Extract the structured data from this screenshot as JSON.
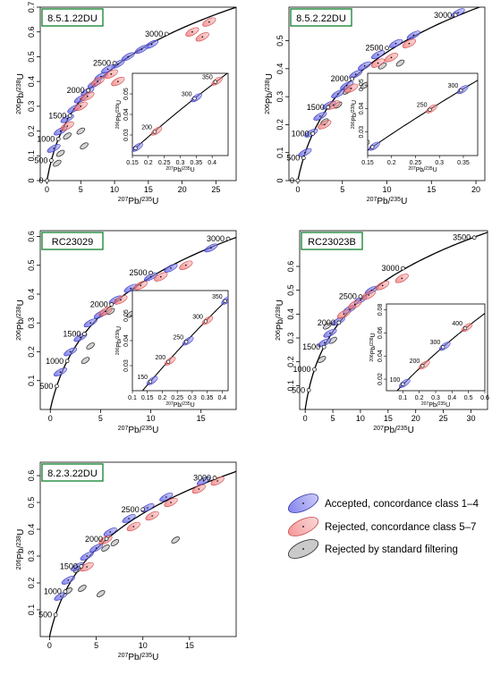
{
  "figure": {
    "legend": [
      {
        "label": "Accepted, concordance class 1–4",
        "color": "#6a6ae0"
      },
      {
        "label": "Rejected, concordance class 5–7",
        "color": "#f08080"
      },
      {
        "label": "Rejected by standard filtering",
        "color": "#a9a9a9"
      }
    ]
  },
  "chart_data": [
    {
      "type": "scatter",
      "sample": "8.5.1.22DU",
      "xlabel": "207Pb/235U",
      "ylabel": "206Pb/238U",
      "xlim": [
        -1,
        28
      ],
      "ylim": [
        0,
        0.7
      ],
      "xticks": [
        0,
        5,
        10,
        15,
        20,
        25
      ],
      "yticks": [
        0,
        0.1,
        0.2,
        0.3,
        0.4,
        0.5,
        0.6,
        0.7
      ],
      "concordia_labels": [
        {
          "age": "0",
          "x": 0.0,
          "y": 0.0
        },
        {
          "age": "500",
          "x": 0.64,
          "y": 0.081
        },
        {
          "age": "1000",
          "x": 1.68,
          "y": 0.168
        },
        {
          "age": "1500",
          "x": 3.4,
          "y": 0.262
        },
        {
          "age": "2000",
          "x": 6.1,
          "y": 0.364
        },
        {
          "age": "2500",
          "x": 10.0,
          "y": 0.474
        },
        {
          "age": "3000",
          "x": 17.7,
          "y": 0.592
        }
      ],
      "inset": {
        "xlim": [
          0.15,
          0.45
        ],
        "ylim": [
          0.02,
          0.06
        ],
        "xticks": [
          0.15,
          0.2,
          0.25,
          0.3,
          0.35,
          0.4
        ],
        "yticks": [
          0.03,
          0.04,
          0.05
        ],
        "ages": [
          {
            "age": "150",
            "x": 0.16,
            "y": 0.0236
          },
          {
            "age": "200",
            "x": 0.22,
            "y": 0.0315
          },
          {
            "age": "300",
            "x": 0.345,
            "y": 0.0477
          },
          {
            "age": "350",
            "x": 0.41,
            "y": 0.0558
          }
        ]
      },
      "accepted": [
        {
          "x": 15.5,
          "y": 0.55
        },
        {
          "x": 14.0,
          "y": 0.53
        },
        {
          "x": 12.0,
          "y": 0.5
        },
        {
          "x": 10.5,
          "y": 0.47
        },
        {
          "x": 9.0,
          "y": 0.45
        },
        {
          "x": 8.0,
          "y": 0.42
        },
        {
          "x": 7.0,
          "y": 0.39
        },
        {
          "x": 6.0,
          "y": 0.36
        },
        {
          "x": 5.0,
          "y": 0.33
        },
        {
          "x": 4.0,
          "y": 0.29
        },
        {
          "x": 3.0,
          "y": 0.25
        },
        {
          "x": 2.0,
          "y": 0.2
        },
        {
          "x": 1.0,
          "y": 0.13
        }
      ],
      "rejected_conc": [
        {
          "x": 24.0,
          "y": 0.64
        },
        {
          "x": 23.0,
          "y": 0.58
        },
        {
          "x": 21.5,
          "y": 0.6
        },
        {
          "x": 10.5,
          "y": 0.4
        },
        {
          "x": 9.5,
          "y": 0.43
        },
        {
          "x": 7.5,
          "y": 0.4
        },
        {
          "x": 6.0,
          "y": 0.34
        },
        {
          "x": 5.0,
          "y": 0.3
        },
        {
          "x": 3.0,
          "y": 0.22
        }
      ],
      "rejected_filter": [
        {
          "x": 5.5,
          "y": 0.14
        },
        {
          "x": 5.0,
          "y": 0.2
        },
        {
          "x": 3.0,
          "y": 0.18
        },
        {
          "x": 2.0,
          "y": 0.11
        },
        {
          "x": 1.5,
          "y": 0.07
        }
      ]
    },
    {
      "type": "scatter",
      "sample": "8.5.2.22DU",
      "xlabel": "207Pb/235U",
      "ylabel": "206Pb/238U",
      "xlim": [
        -1,
        21
      ],
      "ylim": [
        0,
        0.62
      ],
      "xticks": [
        0,
        5,
        10,
        15,
        20
      ],
      "yticks": [
        0,
        0.1,
        0.2,
        0.3,
        0.4,
        0.5
      ],
      "concordia_labels": [
        {
          "age": "0",
          "x": 0.0,
          "y": 0.0
        },
        {
          "age": "500",
          "x": 0.64,
          "y": 0.081
        },
        {
          "age": "1000",
          "x": 1.68,
          "y": 0.168
        },
        {
          "age": "1500",
          "x": 3.4,
          "y": 0.262
        },
        {
          "age": "2000",
          "x": 6.1,
          "y": 0.364
        },
        {
          "age": "2500",
          "x": 10.0,
          "y": 0.474
        },
        {
          "age": "3000",
          "x": 17.7,
          "y": 0.592
        }
      ],
      "inset": {
        "xlim": [
          0.15,
          0.38
        ],
        "ylim": [
          0.02,
          0.055
        ],
        "xticks": [
          0.15,
          0.2,
          0.25,
          0.3,
          0.35
        ],
        "yticks": [
          0.03,
          0.04,
          0.05
        ],
        "ages": [
          {
            "age": "150",
            "x": 0.16,
            "y": 0.0236
          },
          {
            "age": "250",
            "x": 0.28,
            "y": 0.0395
          },
          {
            "age": "300",
            "x": 0.345,
            "y": 0.0477
          }
        ]
      },
      "accepted": [
        {
          "x": 18.0,
          "y": 0.6
        },
        {
          "x": 13.0,
          "y": 0.52
        },
        {
          "x": 11.0,
          "y": 0.49
        },
        {
          "x": 9.0,
          "y": 0.45
        },
        {
          "x": 7.5,
          "y": 0.41
        },
        {
          "x": 6.5,
          "y": 0.38
        },
        {
          "x": 5.5,
          "y": 0.34
        },
        {
          "x": 4.5,
          "y": 0.31
        },
        {
          "x": 3.5,
          "y": 0.27
        },
        {
          "x": 2.5,
          "y": 0.23
        },
        {
          "x": 1.5,
          "y": 0.17
        },
        {
          "x": 0.8,
          "y": 0.1
        }
      ],
      "rejected_conc": [
        {
          "x": 12.5,
          "y": 0.49
        },
        {
          "x": 10.5,
          "y": 0.44
        },
        {
          "x": 9.0,
          "y": 0.42
        },
        {
          "x": 6.0,
          "y": 0.33
        },
        {
          "x": 4.0,
          "y": 0.27
        },
        {
          "x": 3.0,
          "y": 0.2
        }
      ],
      "rejected_filter": [
        {
          "x": 11.5,
          "y": 0.42
        },
        {
          "x": 9.5,
          "y": 0.41
        },
        {
          "x": 7.5,
          "y": 0.34
        },
        {
          "x": 5.5,
          "y": 0.32
        },
        {
          "x": 4.5,
          "y": 0.27
        },
        {
          "x": 3.0,
          "y": 0.21
        }
      ]
    },
    {
      "type": "scatter",
      "sample": "RC23029",
      "xlabel": "207Pb/235U",
      "ylabel": "206Pb/238U",
      "xlim": [
        -1,
        18.5
      ],
      "ylim": [
        0,
        0.62
      ],
      "xticks": [
        0,
        5,
        10,
        15
      ],
      "yticks": [
        0.1,
        0.2,
        0.3,
        0.4,
        0.5,
        0.6
      ],
      "concordia_labels": [
        {
          "age": "500",
          "x": 0.64,
          "y": 0.081
        },
        {
          "age": "1000",
          "x": 1.68,
          "y": 0.168
        },
        {
          "age": "1500",
          "x": 3.4,
          "y": 0.262
        },
        {
          "age": "2000",
          "x": 6.1,
          "y": 0.364
        },
        {
          "age": "2500",
          "x": 10.0,
          "y": 0.474
        },
        {
          "age": "3000",
          "x": 17.7,
          "y": 0.592
        }
      ],
      "inset": {
        "xlim": [
          0.1,
          0.42
        ],
        "ylim": [
          0.02,
          0.06
        ],
        "xticks": [
          0.1,
          0.15,
          0.2,
          0.25,
          0.3,
          0.35,
          0.4
        ],
        "yticks": [
          0.03,
          0.04,
          0.05
        ],
        "ages": [
          {
            "age": "150",
            "x": 0.16,
            "y": 0.0236
          },
          {
            "age": "200",
            "x": 0.22,
            "y": 0.0315
          },
          {
            "age": "250",
            "x": 0.28,
            "y": 0.0395
          },
          {
            "age": "300",
            "x": 0.345,
            "y": 0.0477
          },
          {
            "age": "350",
            "x": 0.41,
            "y": 0.0558
          }
        ]
      },
      "accepted": [
        {
          "x": 16.0,
          "y": 0.56
        },
        {
          "x": 12.0,
          "y": 0.49
        },
        {
          "x": 10.0,
          "y": 0.46
        },
        {
          "x": 8.0,
          "y": 0.42
        },
        {
          "x": 6.5,
          "y": 0.38
        },
        {
          "x": 5.0,
          "y": 0.33
        },
        {
          "x": 4.0,
          "y": 0.3
        },
        {
          "x": 3.0,
          "y": 0.25
        },
        {
          "x": 2.0,
          "y": 0.2
        },
        {
          "x": 1.0,
          "y": 0.13
        }
      ],
      "rejected_conc": [
        {
          "x": 13.5,
          "y": 0.5
        },
        {
          "x": 11.0,
          "y": 0.46
        },
        {
          "x": 9.0,
          "y": 0.43
        },
        {
          "x": 7.0,
          "y": 0.38
        },
        {
          "x": 5.5,
          "y": 0.34
        }
      ],
      "rejected_filter": [
        {
          "x": 8.0,
          "y": 0.33
        },
        {
          "x": 6.0,
          "y": 0.34
        },
        {
          "x": 4.0,
          "y": 0.22
        },
        {
          "x": 3.5,
          "y": 0.17
        }
      ]
    },
    {
      "type": "scatter",
      "sample": "RC23023B",
      "xlabel": "207Pb/235U",
      "ylabel": "206Pb/238U",
      "xlim": [
        -1,
        33
      ],
      "ylim": [
        0,
        0.75
      ],
      "xticks": [
        0,
        5,
        10,
        15,
        20,
        25,
        30
      ],
      "yticks": [
        0.1,
        0.2,
        0.3,
        0.4,
        0.5,
        0.6
      ],
      "concordia_labels": [
        {
          "age": "500",
          "x": 0.64,
          "y": 0.081
        },
        {
          "age": "1000",
          "x": 1.68,
          "y": 0.168
        },
        {
          "age": "1500",
          "x": 3.4,
          "y": 0.262
        },
        {
          "age": "2000",
          "x": 6.1,
          "y": 0.364
        },
        {
          "age": "2500",
          "x": 10.0,
          "y": 0.474
        },
        {
          "age": "3000",
          "x": 17.7,
          "y": 0.592
        },
        {
          "age": "3500",
          "x": 30.6,
          "y": 0.721
        }
      ],
      "inset": {
        "xlim": [
          0,
          0.6
        ],
        "ylim": [
          0.01,
          0.085
        ],
        "xticks": [
          0.1,
          0.2,
          0.3,
          0.4,
          0.5,
          0.6
        ],
        "yticks": [
          0.02,
          0.04,
          0.06,
          0.08
        ],
        "ages": [
          {
            "age": "100",
            "x": 0.1,
            "y": 0.0156
          },
          {
            "age": "200",
            "x": 0.22,
            "y": 0.0315
          },
          {
            "age": "300",
            "x": 0.345,
            "y": 0.0477
          },
          {
            "age": "400",
            "x": 0.48,
            "y": 0.064
          }
        ]
      },
      "accepted": [
        {
          "x": 12.0,
          "y": 0.5
        },
        {
          "x": 10.0,
          "y": 0.46
        },
        {
          "x": 8.0,
          "y": 0.42
        },
        {
          "x": 6.0,
          "y": 0.37
        },
        {
          "x": 4.5,
          "y": 0.32
        },
        {
          "x": 3.5,
          "y": 0.28
        }
      ],
      "rejected_conc": [
        {
          "x": 17.5,
          "y": 0.55
        },
        {
          "x": 14.0,
          "y": 0.52
        },
        {
          "x": 11.5,
          "y": 0.48
        },
        {
          "x": 9.0,
          "y": 0.44
        },
        {
          "x": 7.0,
          "y": 0.4
        }
      ],
      "rejected_filter": [
        {
          "x": 5.0,
          "y": 0.29
        },
        {
          "x": 4.0,
          "y": 0.35
        },
        {
          "x": 3.0,
          "y": 0.21
        }
      ]
    },
    {
      "type": "scatter",
      "sample": "8.2.3.22DU",
      "xlabel": "207Pb/235U",
      "ylabel": "206Pb/238U",
      "xlim": [
        -1,
        20
      ],
      "ylim": [
        0,
        0.65
      ],
      "xticks": [
        0,
        5,
        10,
        15
      ],
      "yticks": [
        0.1,
        0.2,
        0.3,
        0.4,
        0.5,
        0.6
      ],
      "concordia_labels": [
        {
          "age": "500",
          "x": 0.64,
          "y": 0.081
        },
        {
          "age": "1000",
          "x": 1.68,
          "y": 0.168
        },
        {
          "age": "1500",
          "x": 3.4,
          "y": 0.262
        },
        {
          "age": "2000",
          "x": 6.1,
          "y": 0.364
        },
        {
          "age": "2500",
          "x": 10.0,
          "y": 0.474
        },
        {
          "age": "3000",
          "x": 17.7,
          "y": 0.592
        }
      ],
      "accepted": [
        {
          "x": 16.5,
          "y": 0.58
        },
        {
          "x": 12.5,
          "y": 0.52
        },
        {
          "x": 10.5,
          "y": 0.48
        },
        {
          "x": 8.5,
          "y": 0.44
        },
        {
          "x": 6.5,
          "y": 0.39
        },
        {
          "x": 5.0,
          "y": 0.33
        },
        {
          "x": 4.0,
          "y": 0.3
        },
        {
          "x": 3.0,
          "y": 0.26
        },
        {
          "x": 2.0,
          "y": 0.21
        },
        {
          "x": 1.2,
          "y": 0.15
        }
      ],
      "rejected_conc": [
        {
          "x": 18.0,
          "y": 0.58
        },
        {
          "x": 16.0,
          "y": 0.55
        },
        {
          "x": 13.0,
          "y": 0.5
        },
        {
          "x": 11.0,
          "y": 0.45
        },
        {
          "x": 9.0,
          "y": 0.41
        },
        {
          "x": 6.0,
          "y": 0.36
        },
        {
          "x": 4.0,
          "y": 0.26
        }
      ],
      "rejected_filter": [
        {
          "x": 13.5,
          "y": 0.36
        },
        {
          "x": 7.0,
          "y": 0.35
        },
        {
          "x": 6.0,
          "y": 0.33
        },
        {
          "x": 5.5,
          "y": 0.16
        },
        {
          "x": 3.5,
          "y": 0.18
        },
        {
          "x": 3.0,
          "y": 0.25
        },
        {
          "x": 2.0,
          "y": 0.17
        }
      ]
    }
  ]
}
